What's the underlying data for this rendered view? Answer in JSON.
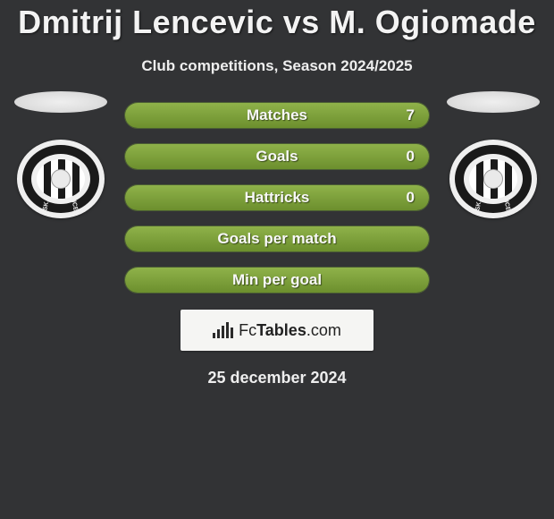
{
  "title": "Dmitrij Lencevic vs M. Ogiomade",
  "subtitle": "Club competitions, Season 2024/2025",
  "date": "25 december 2024",
  "badge": {
    "text_normal": "Fc",
    "text_bold": "Tables",
    "text_suffix": ".com"
  },
  "crest": {
    "year": "1905"
  },
  "colors": {
    "background": "#323335",
    "bar_gradient_top": "#8fb24a",
    "bar_gradient_bottom": "#6c8f2e",
    "bar_border": "#4b5e34",
    "text_light": "#f3f3f3"
  },
  "stats": [
    {
      "label": "Matches",
      "left_pct": 50,
      "right_pct": 50,
      "value_right": "7"
    },
    {
      "label": "Goals",
      "left_pct": 50,
      "right_pct": 50,
      "value_right": "0"
    },
    {
      "label": "Hattricks",
      "left_pct": 50,
      "right_pct": 50,
      "value_right": "0"
    },
    {
      "label": "Goals per match",
      "left_pct": 50,
      "right_pct": 50,
      "value_right": ""
    },
    {
      "label": "Min per goal",
      "left_pct": 50,
      "right_pct": 50,
      "value_right": ""
    }
  ]
}
